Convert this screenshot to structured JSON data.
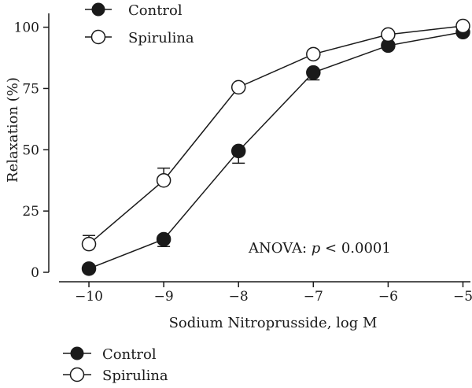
{
  "chart_data": {
    "type": "line",
    "xlabel": "Sodium Nitroprusside, log M",
    "ylabel": "Relaxation (%)",
    "xlim": [
      -10.4,
      -4.9
    ],
    "ylim": [
      0,
      105
    ],
    "x": [
      -10,
      -9,
      -8,
      -7,
      -6,
      -5
    ],
    "xticks": [
      "−10",
      "−9",
      "−8",
      "−7",
      "−6",
      "−5"
    ],
    "yticks": [
      "0",
      "25",
      "50",
      "75",
      "100"
    ],
    "series": [
      {
        "name": "Control",
        "marker": "filled-circle",
        "values": [
          1.5,
          13.5,
          49.5,
          81.5,
          92.5,
          98
        ],
        "error": [
          0,
          3,
          5,
          3,
          0,
          0
        ]
      },
      {
        "name": "Spirulina",
        "marker": "open-circle",
        "values": [
          11.5,
          37.5,
          75.5,
          89,
          97,
          100.5
        ],
        "error": [
          3.5,
          5,
          0,
          0,
          0,
          0
        ]
      }
    ],
    "annotation": {
      "prefix": "ANOVA: ",
      "stat": "p",
      "suffix": " < 0.0001"
    },
    "legends": [
      {
        "placement": "top-left",
        "entries": [
          "Control",
          "Spirulina"
        ]
      },
      {
        "placement": "bottom-left",
        "entries": [
          "Control",
          "Spirulina"
        ]
      }
    ],
    "grid": false,
    "colors": {
      "line": "#1a1a1a",
      "filled_marker": "#1a1a1a",
      "open_marker_fill": "#ffffff"
    }
  }
}
